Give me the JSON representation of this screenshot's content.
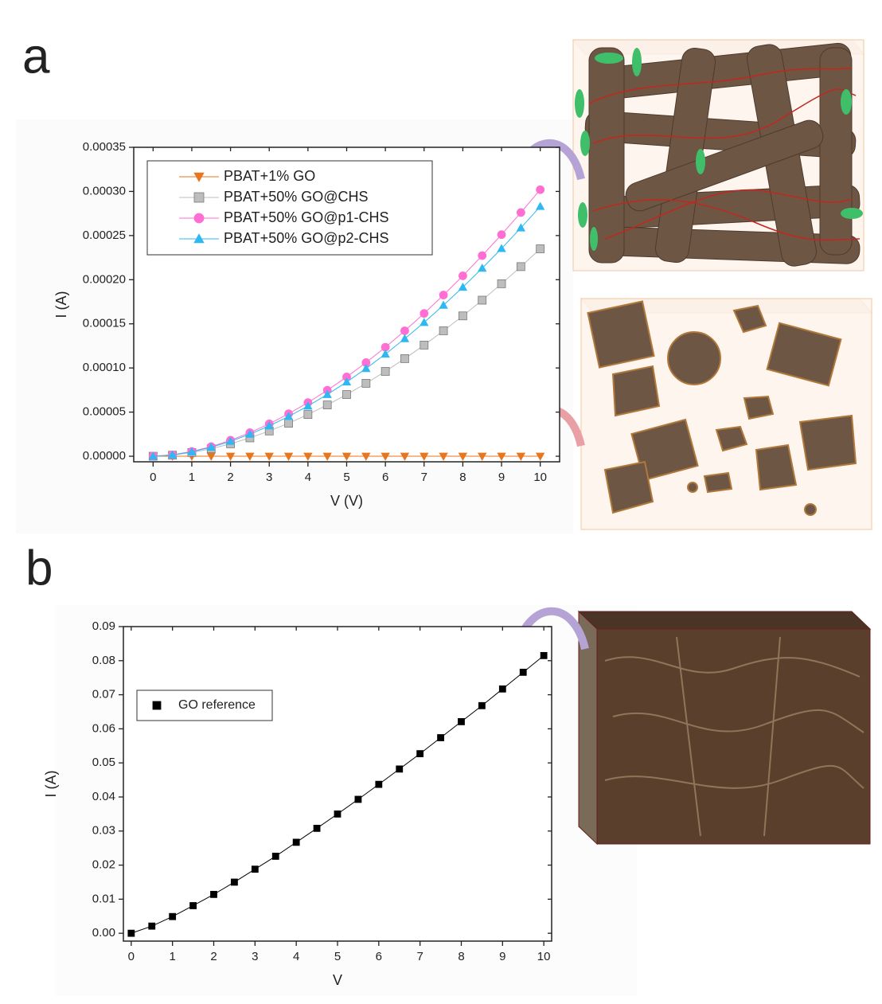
{
  "chart_data": [
    {
      "type": "scatter",
      "panel": "a",
      "xlabel": "V (V)",
      "ylabel": "I (A)",
      "x": [
        0,
        0.5,
        1,
        1.5,
        2,
        2.5,
        3,
        3.5,
        4,
        4.5,
        5,
        5.5,
        6,
        6.5,
        7,
        7.5,
        8,
        8.5,
        9,
        9.5,
        10
      ],
      "series": [
        {
          "name": "PBAT+1% GO",
          "color": "#e8761e",
          "marker": "triangle-down",
          "values": [
            0,
            0,
            0,
            0,
            0,
            0,
            0,
            0,
            0,
            0,
            0,
            0,
            0,
            0,
            0,
            0,
            0,
            0,
            0,
            0,
            0
          ]
        },
        {
          "name": "PBAT+50% GO@CHS",
          "color": "#bdbdbd",
          "marker": "square",
          "values": [
            0,
            1.2e-06,
            4.2e-06,
            8.5e-06,
            1.41e-05,
            2.08e-05,
            2.86e-05,
            3.74e-05,
            4.73e-05,
            5.81e-05,
            6.99e-05,
            8.26e-05,
            9.61e-05,
            0.0001106,
            0.0001259,
            0.0001421,
            0.000159,
            0.0001768,
            0.0001954,
            0.0002148,
            0.000235
          ]
        },
        {
          "name": "PBAT+50% GO@p1-CHS",
          "color": "#ff6ed2",
          "marker": "circle",
          "values": [
            0,
            1.6e-06,
            5.4e-06,
            1.09e-05,
            1.81e-05,
            2.67e-05,
            3.67e-05,
            4.81e-05,
            6.08e-05,
            7.47e-05,
            8.98e-05,
            0.0001061,
            0.0001235,
            0.0001421,
            0.0001618,
            0.0001826,
            0.0002044,
            0.0002273,
            0.0002511,
            0.0002761,
            0.000302
          ]
        },
        {
          "name": "PBAT+50% GO@p2-CHS",
          "color": "#2fb8f2",
          "marker": "triangle-up",
          "values": [
            0,
            1.5e-06,
            5e-06,
            1.02e-05,
            1.69e-05,
            2.5e-05,
            3.44e-05,
            4.51e-05,
            5.69e-05,
            7e-05,
            8.41e-05,
            9.94e-05,
            0.0001157,
            0.0001332,
            0.0001516,
            0.0001711,
            0.0001915,
            0.000213,
            0.0002353,
            0.0002587,
            0.000283
          ]
        }
      ],
      "xlim": [
        -0.5,
        10.5
      ],
      "xticks": [
        0,
        1,
        2,
        3,
        4,
        5,
        6,
        7,
        8,
        9,
        10
      ],
      "ylim": [
        -6.3e-06,
        0.00035
      ],
      "yticks": [
        {
          "value": 0,
          "label": "0.00000"
        },
        {
          "value": 5e-05,
          "label": "0.00005"
        },
        {
          "value": 0.0001,
          "label": "0.00010"
        },
        {
          "value": 0.00015,
          "label": "0.00015"
        },
        {
          "value": 0.0002,
          "label": "0.00020"
        },
        {
          "value": 0.00025,
          "label": "0.00025"
        },
        {
          "value": 0.0003,
          "label": "0.00030"
        },
        {
          "value": 0.00035,
          "label": "0.00035"
        }
      ],
      "legend": "upper left"
    },
    {
      "type": "scatter",
      "panel": "b",
      "xlabel": "V",
      "ylabel": "I (A)",
      "x": [
        0,
        0.5,
        1,
        1.5,
        2,
        2.5,
        3,
        3.5,
        4,
        4.5,
        5,
        5.5,
        6,
        6.5,
        7,
        7.5,
        8,
        8.5,
        9,
        9.5,
        10
      ],
      "series": [
        {
          "name": "GO reference",
          "color": "#000000",
          "marker": "square",
          "values": [
            0,
            0.0021,
            0.0049,
            0.0081,
            0.0114,
            0.015,
            0.0188,
            0.0226,
            0.0267,
            0.0308,
            0.035,
            0.0393,
            0.0437,
            0.0482,
            0.0527,
            0.0574,
            0.0621,
            0.0668,
            0.0717,
            0.0766,
            0.0815
          ]
        }
      ],
      "xlim": [
        -0.19,
        10.19
      ],
      "xticks": [
        0,
        1,
        2,
        3,
        4,
        5,
        6,
        7,
        8,
        9,
        10
      ],
      "ylim": [
        -0.0023,
        0.09
      ],
      "yticks": [
        {
          "value": 0,
          "label": "0.00"
        },
        {
          "value": 0.01,
          "label": "0.01"
        },
        {
          "value": 0.02,
          "label": "0.02"
        },
        {
          "value": 0.03,
          "label": "0.03"
        },
        {
          "value": 0.04,
          "label": "0.04"
        },
        {
          "value": 0.05,
          "label": "0.05"
        },
        {
          "value": 0.06,
          "label": "0.06"
        },
        {
          "value": 0.07,
          "label": "0.07"
        },
        {
          "value": 0.08,
          "label": "0.08"
        },
        {
          "value": 0.09,
          "label": "0.09"
        }
      ],
      "legend": "upper left"
    }
  ]
}
